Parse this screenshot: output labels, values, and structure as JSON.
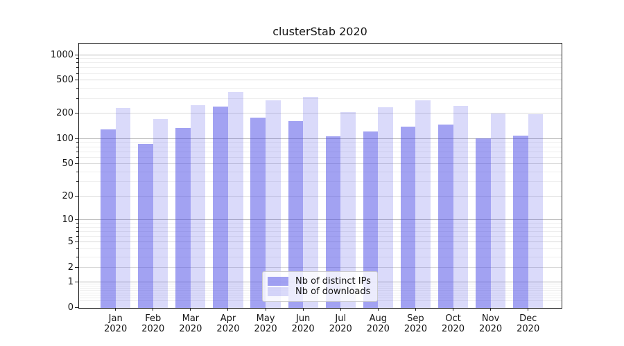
{
  "figure": {
    "title": "clusterStab 2020"
  },
  "legend": {
    "items": [
      {
        "label": "Nb of distinct IPs",
        "color": "rgba(70,70,230,0.5)"
      },
      {
        "label": "Nb of downloads",
        "color": "rgba(70,70,230,0.2)"
      }
    ],
    "position": "lower center"
  },
  "colors": {
    "bar_distinct_ips": "rgba(70,70,230,0.5)",
    "bar_downloads": "rgba(70,70,230,0.2)",
    "grid_power10": "#b4b4b4",
    "grid_labeled": "#d9d9d9",
    "grid_minor": "#eeeeee",
    "axis": "#222222",
    "text": "#141414"
  },
  "chart_data": {
    "type": "bar",
    "title": "clusterStab 2020",
    "categories": [
      "Jan 2020",
      "Feb 2020",
      "Mar 2020",
      "Apr 2020",
      "May 2020",
      "Jun 2020",
      "Jul 2020",
      "Aug 2020",
      "Sep 2020",
      "Oct 2020",
      "Nov 2020",
      "Dec 2020"
    ],
    "series": [
      {
        "name": "Nb of distinct IPs",
        "values": [
          130,
          87,
          135,
          245,
          180,
          165,
          108,
          122,
          140,
          150,
          101,
          110
        ]
      },
      {
        "name": "Nb of downloads",
        "values": [
          235,
          175,
          253,
          365,
          291,
          320,
          208,
          239,
          292,
          251,
          200,
          197
        ]
      }
    ],
    "xlabel": "",
    "ylabel": "",
    "yscale": "log1p",
    "yticks": [
      0,
      1,
      2,
      5,
      10,
      20,
      50,
      100,
      200,
      500,
      1000
    ],
    "ylim": [
      0,
      1380
    ],
    "grid": "both",
    "legend_position": "lower center"
  }
}
